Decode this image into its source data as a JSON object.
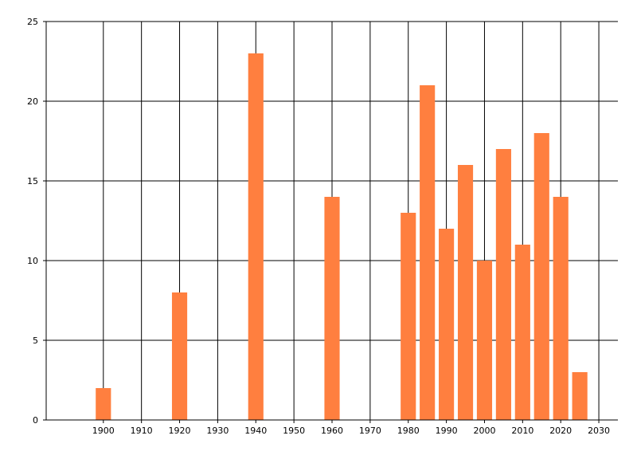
{
  "chart_data": {
    "type": "bar",
    "title": "",
    "xlabel": "",
    "ylabel": "",
    "x": [
      1900,
      1920,
      1940,
      1960,
      1980,
      1985,
      1990,
      1995,
      2000,
      2005,
      2010,
      2015,
      2020,
      2025
    ],
    "values": [
      2,
      8,
      23,
      14,
      13,
      21,
      12,
      16,
      10,
      17,
      11,
      18,
      14,
      3
    ],
    "xlim": [
      1885,
      2035
    ],
    "ylim": [
      0,
      25
    ],
    "x_ticks": [
      "1900",
      "1910",
      "1920",
      "1930",
      "1940",
      "1950",
      "1960",
      "1970",
      "1980",
      "1990",
      "2000",
      "2010",
      "2020",
      "2030"
    ],
    "y_ticks": [
      "0",
      "5",
      "10",
      "15",
      "20",
      "25"
    ],
    "grid": true,
    "legend": "none",
    "bar_color": "#ff7f3f",
    "grid_color": "#000000"
  }
}
